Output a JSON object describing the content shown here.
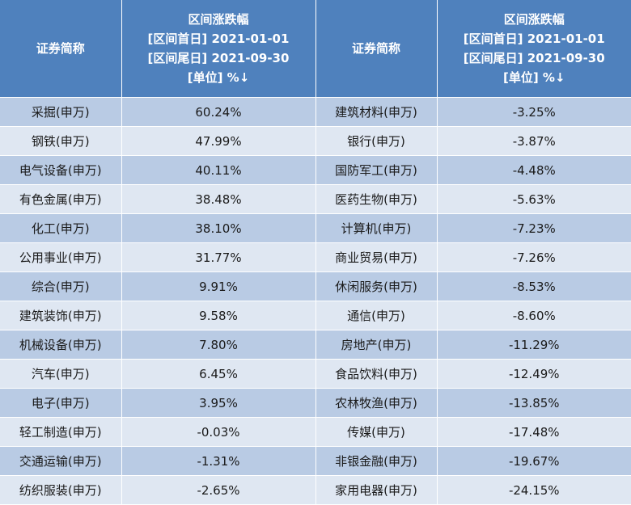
{
  "header": {
    "name_label": "证券简称",
    "change_title": "区间涨跌幅",
    "start_date": "[区间首日] 2021-01-01",
    "end_date": "[区间尾日] 2021-09-30",
    "unit": "[单位] %↓"
  },
  "left_rows": [
    {
      "name": "采掘(申万)",
      "value": "60.24%"
    },
    {
      "name": "钢铁(申万)",
      "value": "47.99%"
    },
    {
      "name": "电气设备(申万)",
      "value": "40.11%"
    },
    {
      "name": "有色金属(申万)",
      "value": "38.48%"
    },
    {
      "name": "化工(申万)",
      "value": "38.10%"
    },
    {
      "name": "公用事业(申万)",
      "value": "31.77%"
    },
    {
      "name": "综合(申万)",
      "value": "9.91%"
    },
    {
      "name": "建筑装饰(申万)",
      "value": "9.58%"
    },
    {
      "name": "机械设备(申万)",
      "value": "7.80%"
    },
    {
      "name": "汽车(申万)",
      "value": "6.45%"
    },
    {
      "name": "电子(申万)",
      "value": "3.95%"
    },
    {
      "name": "轻工制造(申万)",
      "value": "-0.03%"
    },
    {
      "name": "交通运输(申万)",
      "value": "-1.31%"
    },
    {
      "name": "纺织服装(申万)",
      "value": "-2.65%"
    }
  ],
  "right_rows": [
    {
      "name": "建筑材料(申万)",
      "value": "-3.25%"
    },
    {
      "name": "银行(申万)",
      "value": "-3.87%"
    },
    {
      "name": "国防军工(申万)",
      "value": "-4.48%"
    },
    {
      "name": "医药生物(申万)",
      "value": "-5.63%"
    },
    {
      "name": "计算机(申万)",
      "value": "-7.23%"
    },
    {
      "name": "商业贸易(申万)",
      "value": "-7.26%"
    },
    {
      "name": "休闲服务(申万)",
      "value": "-8.53%"
    },
    {
      "name": "通信(申万)",
      "value": "-8.60%"
    },
    {
      "name": "房地产(申万)",
      "value": "-11.29%"
    },
    {
      "name": "食品饮料(申万)",
      "value": "-12.49%"
    },
    {
      "name": "农林牧渔(申万)",
      "value": "-13.85%"
    },
    {
      "name": "传媒(申万)",
      "value": "-17.48%"
    },
    {
      "name": "非银金融(申万)",
      "value": "-19.67%"
    },
    {
      "name": "家用电器(申万)",
      "value": "-24.15%"
    }
  ]
}
